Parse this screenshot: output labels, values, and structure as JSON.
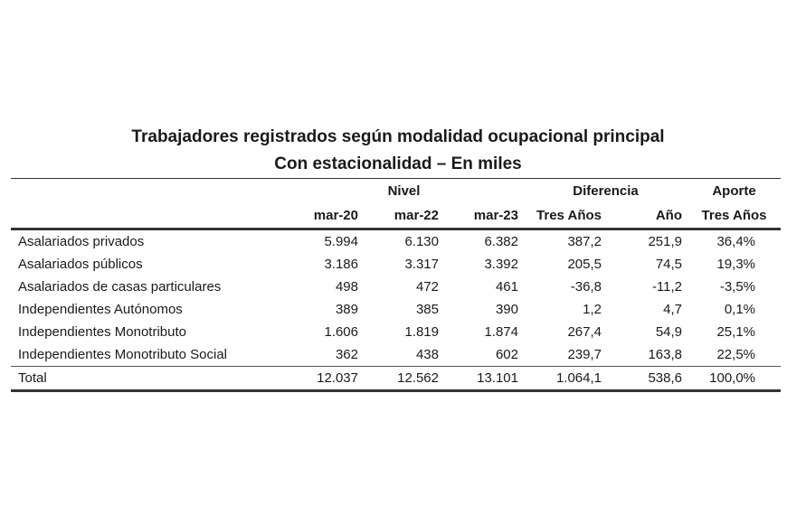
{
  "title": "Trabajadores registrados según modalidad ocupacional principal",
  "subtitle": "Con estacionalidad – En miles",
  "header": {
    "group_nivel": "Nivel",
    "group_diferencia": "Diferencia",
    "group_aporte": "Aporte",
    "columns": [
      "mar-20",
      "mar-22",
      "mar-23",
      "Tres Años",
      "Año",
      "Tres Años"
    ]
  },
  "rows": [
    {
      "label": "Asalariados privados",
      "values": [
        "5.994",
        "6.130",
        "6.382",
        "387,2",
        "251,9",
        "36,4%"
      ]
    },
    {
      "label": "Asalariados públicos",
      "values": [
        "3.186",
        "3.317",
        "3.392",
        "205,5",
        "74,5",
        "19,3%"
      ]
    },
    {
      "label": "Asalariados de casas particulares",
      "values": [
        "498",
        "472",
        "461",
        "-36,8",
        "-11,2",
        "-3,5%"
      ]
    },
    {
      "label": "Independientes Autónomos",
      "values": [
        "389",
        "385",
        "390",
        "1,2",
        "4,7",
        "0,1%"
      ]
    },
    {
      "label": "Independientes Monotributo",
      "values": [
        "1.606",
        "1.819",
        "1.874",
        "267,4",
        "54,9",
        "25,1%"
      ]
    },
    {
      "label": "Independientes Monotributo Social",
      "values": [
        "362",
        "438",
        "602",
        "239,7",
        "163,8",
        "22,5%"
      ]
    }
  ],
  "total": {
    "label": "Total",
    "values": [
      "12.037",
      "12.562",
      "13.101",
      "1.064,1",
      "538,6",
      "100,0%"
    ]
  }
}
